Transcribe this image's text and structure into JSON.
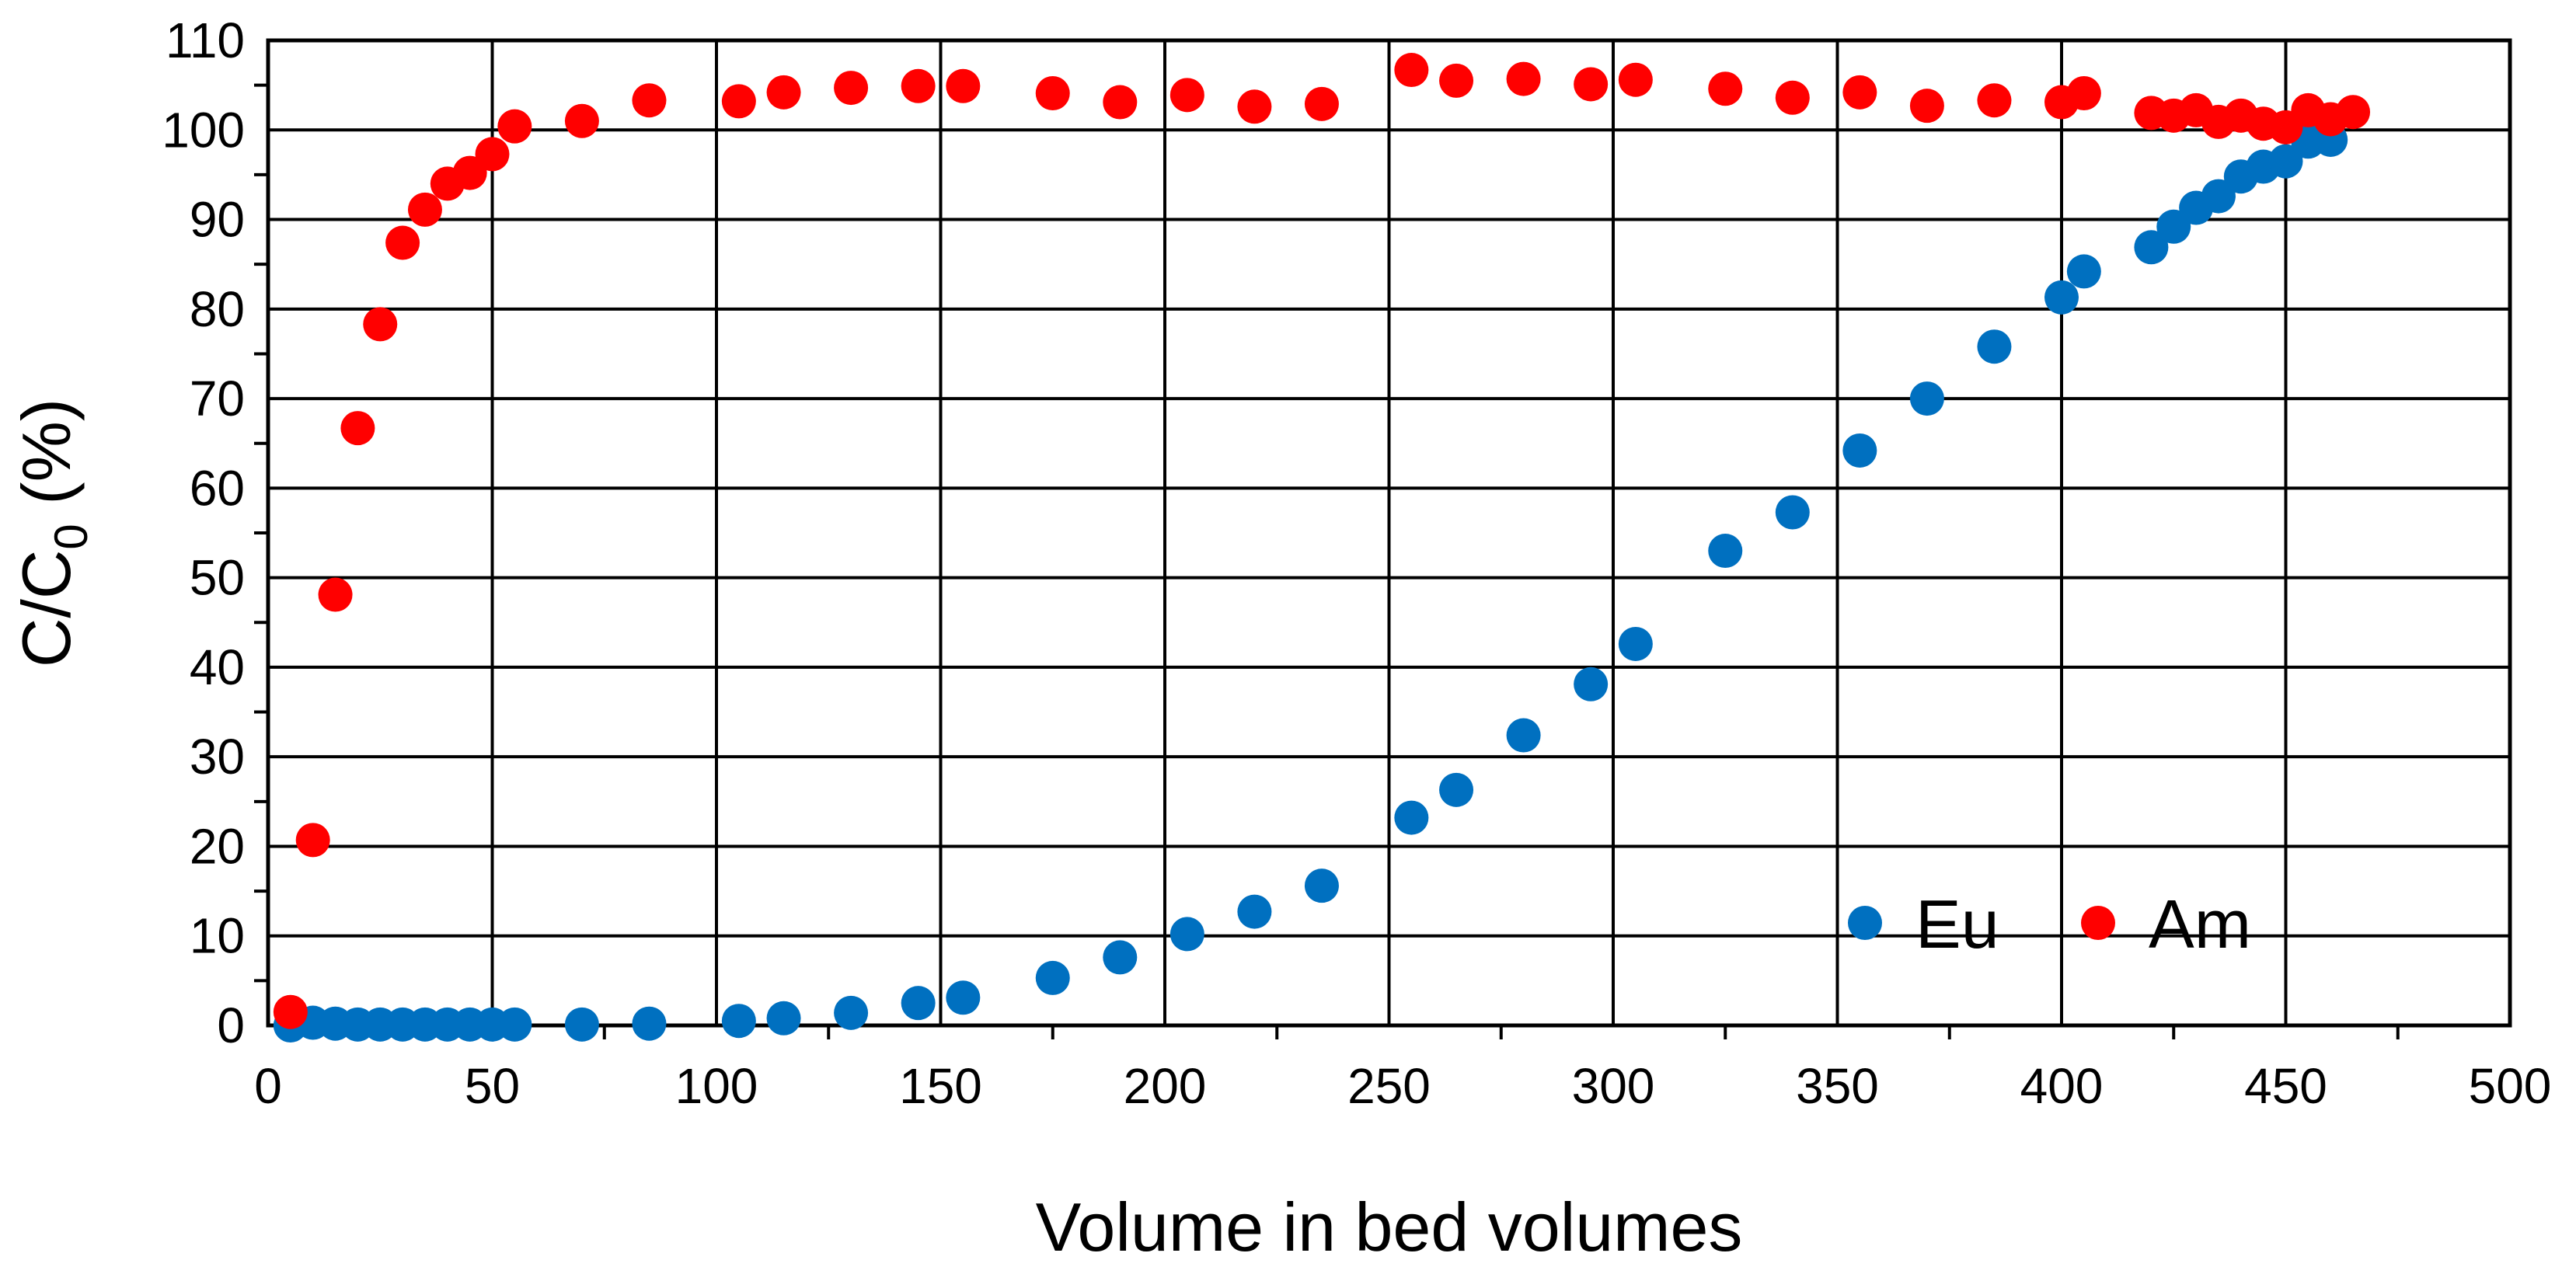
{
  "chart_data": {
    "type": "scatter",
    "xlabel": "Volume in bed volumes",
    "ylabel_main": "C/C",
    "ylabel_sub": "0",
    "ylabel_tail": " (%)",
    "xlim": [
      0,
      500
    ],
    "ylim": [
      0,
      110
    ],
    "x_ticks": [
      0,
      50,
      100,
      150,
      200,
      250,
      300,
      350,
      400,
      450,
      500
    ],
    "y_ticks": [
      0,
      10,
      20,
      30,
      40,
      50,
      60,
      70,
      80,
      90,
      100,
      110
    ],
    "grid": true,
    "legend_position": "bottom-right",
    "series": [
      {
        "name": "Eu",
        "color": "#0070C0",
        "x": [
          5,
          10,
          15,
          20,
          25,
          30,
          35,
          40,
          45,
          50,
          55,
          70,
          85,
          105,
          115,
          130,
          145,
          155,
          175,
          190,
          205,
          220,
          235,
          255,
          265,
          280,
          295,
          305,
          325,
          340,
          355,
          370,
          385,
          400,
          405,
          420,
          425,
          430,
          435,
          440,
          445,
          450,
          455,
          460
        ],
        "y": [
          0,
          0.3,
          0.2,
          0.1,
          0.1,
          0.1,
          0.1,
          0.1,
          0.1,
          0.1,
          0.1,
          0.1,
          0.2,
          0.5,
          0.8,
          1.4,
          2.5,
          3.1,
          5.3,
          7.6,
          10.2,
          12.7,
          15.6,
          23.2,
          26.3,
          32.4,
          38.1,
          42.6,
          53,
          57.3,
          64.2,
          70,
          75.8,
          81.3,
          84.2,
          86.9,
          89.2,
          91.3,
          92.6,
          94.8,
          95.9,
          96.5,
          98.7,
          98.9
        ]
      },
      {
        "name": "Am",
        "color": "#FF0000",
        "x": [
          5,
          10,
          15,
          20,
          25,
          30,
          35,
          40,
          45,
          50,
          55,
          70,
          85,
          105,
          115,
          130,
          145,
          155,
          175,
          190,
          205,
          220,
          235,
          255,
          265,
          280,
          295,
          305,
          325,
          340,
          355,
          370,
          385,
          400,
          405,
          420,
          425,
          430,
          435,
          440,
          445,
          450,
          455,
          460,
          465
        ],
        "y": [
          1.5,
          20.7,
          48.1,
          66.7,
          78.3,
          87.4,
          91.1,
          94,
          95.2,
          97.3,
          100.4,
          101,
          103.3,
          103.2,
          104.2,
          104.7,
          104.9,
          104.9,
          104.1,
          103.1,
          103.9,
          102.6,
          102.9,
          106.7,
          105.5,
          105.7,
          105.1,
          105.6,
          104.6,
          103.6,
          104.2,
          102.7,
          103.3,
          103.1,
          104.1,
          101.9,
          101.6,
          102.2,
          100.9,
          101.6,
          100.7,
          100.3,
          102.2,
          101.2,
          102
        ]
      }
    ]
  }
}
